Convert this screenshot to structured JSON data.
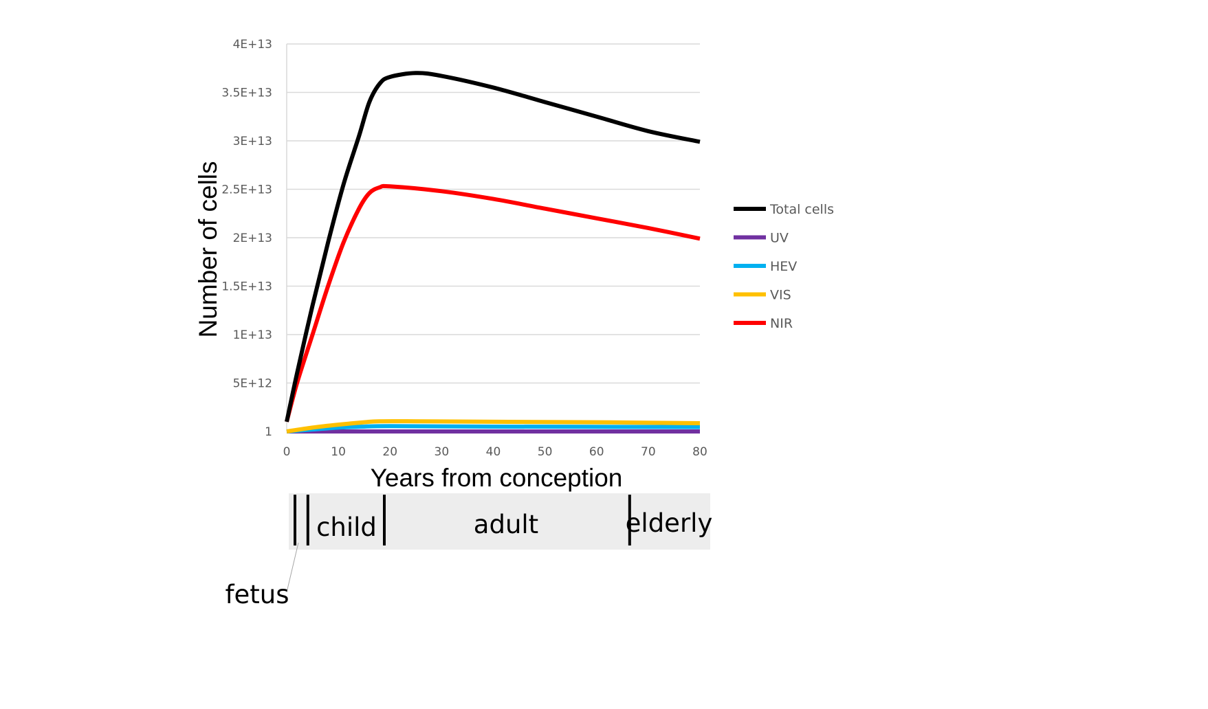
{
  "chart_data": {
    "type": "line",
    "title": "",
    "xlabel": "Years from conception",
    "ylabel": "Number of cells",
    "xlim": [
      0,
      80
    ],
    "ylim": [
      0,
      40000000000000
    ],
    "x_ticks": [
      "0",
      "10",
      "20",
      "30",
      "40",
      "50",
      "60",
      "70",
      "80"
    ],
    "y_ticks": [
      "1",
      "5E+12",
      "1E+13",
      "1.5E+13",
      "2E+13",
      "2.5E+13",
      "3E+13",
      "3.5E+13",
      "4E+13"
    ],
    "grid": true,
    "legend_position": "right",
    "series": [
      {
        "name": "Total cells",
        "color": "#000000",
        "points": [
          [
            0,
            1000000000000
          ],
          [
            2,
            6000000000000
          ],
          [
            5,
            13000000000000
          ],
          [
            8,
            19500000000000
          ],
          [
            11,
            25500000000000
          ],
          [
            14,
            30500000000000
          ],
          [
            16,
            34000000000000
          ],
          [
            18,
            35900000000000
          ],
          [
            20,
            36600000000000
          ],
          [
            25,
            37000000000000
          ],
          [
            30,
            36700000000000
          ],
          [
            40,
            35500000000000
          ],
          [
            50,
            34000000000000
          ],
          [
            60,
            32500000000000
          ],
          [
            70,
            31000000000000
          ],
          [
            80,
            29900000000000
          ]
        ]
      },
      {
        "name": "UV",
        "color": "#7030a0",
        "points": [
          [
            0,
            0
          ],
          [
            20,
            0
          ],
          [
            80,
            0
          ]
        ]
      },
      {
        "name": "HEV",
        "color": "#00b0f0",
        "points": [
          [
            0,
            0
          ],
          [
            5,
            200000000000
          ],
          [
            10,
            400000000000
          ],
          [
            15,
            500000000000
          ],
          [
            20,
            550000000000
          ],
          [
            40,
            500000000000
          ],
          [
            80,
            450000000000
          ]
        ]
      },
      {
        "name": "VIS",
        "color": "#ffc000",
        "points": [
          [
            0,
            0
          ],
          [
            5,
            400000000000
          ],
          [
            10,
            700000000000
          ],
          [
            15,
            950000000000
          ],
          [
            18,
            1050000000000
          ],
          [
            25,
            1050000000000
          ],
          [
            40,
            1000000000000
          ],
          [
            60,
            950000000000
          ],
          [
            80,
            850000000000
          ]
        ]
      },
      {
        "name": "NIR",
        "color": "#ff0000",
        "points": [
          [
            0,
            1000000000000
          ],
          [
            2,
            5000000000000
          ],
          [
            5,
            10000000000000
          ],
          [
            8,
            15000000000000
          ],
          [
            11,
            19500000000000
          ],
          [
            14,
            23000000000000
          ],
          [
            16,
            24600000000000
          ],
          [
            18,
            25200000000000
          ],
          [
            20,
            25300000000000
          ],
          [
            30,
            24800000000000
          ],
          [
            40,
            24000000000000
          ],
          [
            50,
            23000000000000
          ],
          [
            60,
            22000000000000
          ],
          [
            70,
            21000000000000
          ],
          [
            80,
            19900000000000
          ]
        ]
      }
    ],
    "life_stages": {
      "labels": [
        "child",
        "adult",
        "elderly"
      ],
      "fetus_label": "fetus",
      "background": "#ededed",
      "dividers_years": [
        1.2,
        3.7,
        18.5,
        66
      ]
    }
  }
}
